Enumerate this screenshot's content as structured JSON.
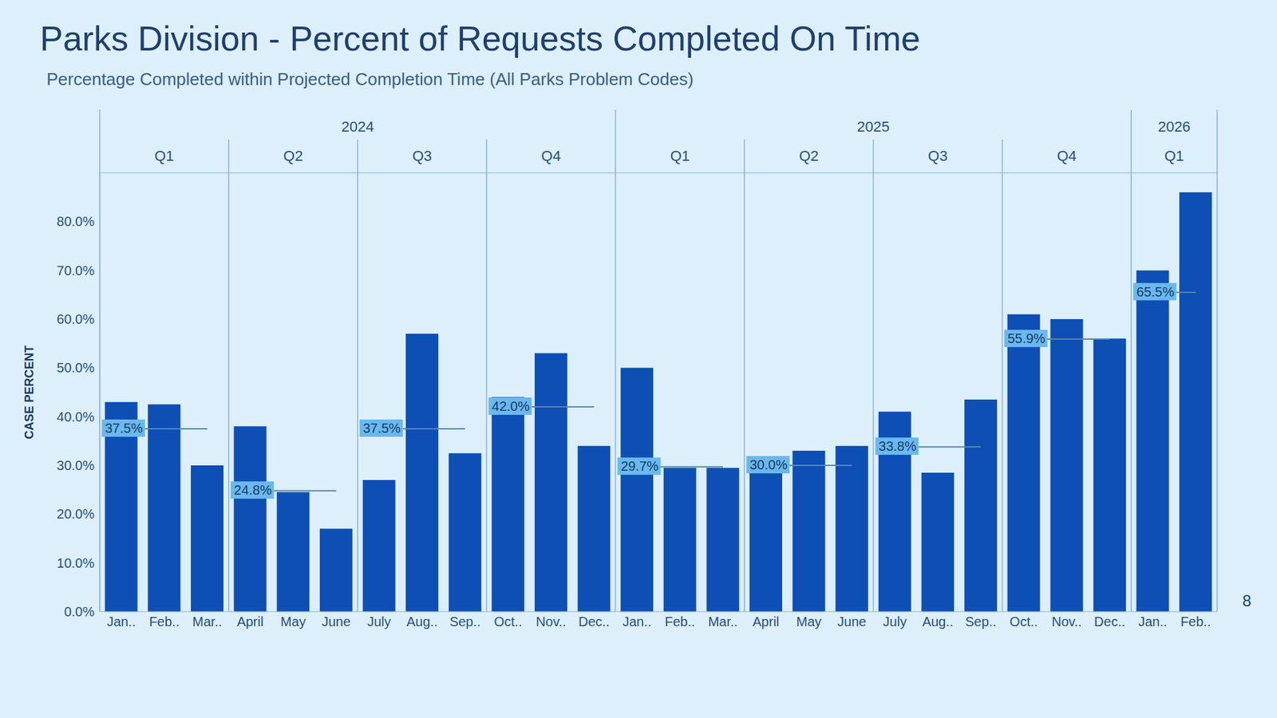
{
  "chart_data": {
    "type": "bar",
    "title": "Parks Division - Percent of Requests Completed On Time",
    "subtitle": "Percentage Completed within Projected Completion Time (All Parks Problem Codes)",
    "ylabel": "CASE PERCENT",
    "page_number": "8",
    "categories": [
      "Jan..",
      "Feb..",
      "Mar..",
      "April",
      "May",
      "June",
      "July",
      "Aug..",
      "Sep..",
      "Oct..",
      "Nov..",
      "Dec..",
      "Jan..",
      "Feb..",
      "Mar..",
      "April",
      "May",
      "June",
      "July",
      "Aug..",
      "Sep..",
      "Oct..",
      "Nov..",
      "Dec..",
      "Jan..",
      "Feb.."
    ],
    "years": [
      "2024",
      "2024",
      "2024",
      "2024",
      "2024",
      "2024",
      "2024",
      "2024",
      "2024",
      "2024",
      "2024",
      "2024",
      "2025",
      "2025",
      "2025",
      "2025",
      "2025",
      "2025",
      "2025",
      "2025",
      "2025",
      "2025",
      "2025",
      "2025",
      "2026",
      "2026"
    ],
    "quarters": [
      "Q1",
      "Q1",
      "Q1",
      "Q2",
      "Q2",
      "Q2",
      "Q3",
      "Q3",
      "Q3",
      "Q4",
      "Q4",
      "Q4",
      "Q1",
      "Q1",
      "Q1",
      "Q2",
      "Q2",
      "Q2",
      "Q3",
      "Q3",
      "Q3",
      "Q4",
      "Q4",
      "Q4",
      "Q1",
      "Q1"
    ],
    "values": [
      43,
      42.5,
      30,
      38,
      24.5,
      17,
      27,
      57,
      32.5,
      44,
      53,
      34,
      50,
      29.5,
      29.5,
      31.5,
      33,
      34,
      41,
      28.5,
      43.5,
      61,
      60,
      56,
      70,
      86
    ],
    "color": "#0d4fb5",
    "quarter_averages": [
      {
        "year": "2024",
        "quarter": "Q1",
        "value": 37.5,
        "label": "37.5%"
      },
      {
        "year": "2024",
        "quarter": "Q2",
        "value": 24.8,
        "label": "24.8%"
      },
      {
        "year": "2024",
        "quarter": "Q3",
        "value": 37.5,
        "label": "37.5%"
      },
      {
        "year": "2024",
        "quarter": "Q4",
        "value": 42.0,
        "label": "42.0%"
      },
      {
        "year": "2025",
        "quarter": "Q1",
        "value": 29.7,
        "label": "29.7%"
      },
      {
        "year": "2025",
        "quarter": "Q2",
        "value": 30.0,
        "label": "30.0%"
      },
      {
        "year": "2025",
        "quarter": "Q3",
        "value": 33.8,
        "label": "33.8%"
      },
      {
        "year": "2025",
        "quarter": "Q4",
        "value": 55.9,
        "label": "55.9%"
      },
      {
        "year": "2026",
        "quarter": "Q1",
        "value": 65.5,
        "label": "65.5%"
      }
    ],
    "ylim": [
      0,
      90
    ],
    "yticks": [
      {
        "value": 0,
        "label": "0.0%"
      },
      {
        "value": 10,
        "label": "10.0%"
      },
      {
        "value": 20,
        "label": "20.0%"
      },
      {
        "value": 30,
        "label": "30.0%"
      },
      {
        "value": 40,
        "label": "40.0%"
      },
      {
        "value": 50,
        "label": "50.0%"
      },
      {
        "value": 60,
        "label": "60.0%"
      },
      {
        "value": 70,
        "label": "70.0%"
      },
      {
        "value": 80,
        "label": "80.0%"
      }
    ],
    "grid": false
  }
}
